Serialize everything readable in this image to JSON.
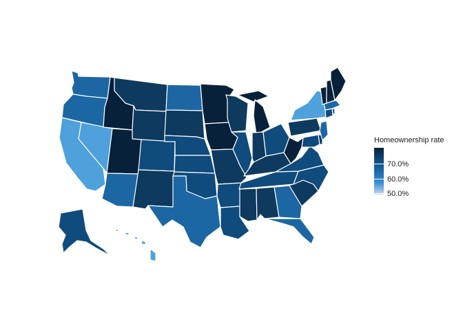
{
  "legend": {
    "title": "Homeownership rate",
    "ticks": [
      {
        "label": "70.0%",
        "value": 70.0
      },
      {
        "label": "60.0%",
        "value": 60.0
      },
      {
        "label": "50.0%",
        "value": 50.0
      }
    ],
    "scale_min": 46.0,
    "scale_max": 75.0
  },
  "colors": {
    "very_high": "#08213a",
    "high": "#0d3a5e",
    "mid_high": "#0f4b7d",
    "mid": "#1c67a3",
    "low": "#3186c6",
    "very_low": "#4ea1db"
  },
  "states": [
    {
      "name": "Washington",
      "level": "mid"
    },
    {
      "name": "Oregon",
      "level": "mid"
    },
    {
      "name": "California",
      "level": "very_low"
    },
    {
      "name": "Nevada",
      "level": "very_low"
    },
    {
      "name": "Idaho",
      "level": "very_high"
    },
    {
      "name": "Montana",
      "level": "high"
    },
    {
      "name": "Wyoming",
      "level": "high"
    },
    {
      "name": "Utah",
      "level": "very_high"
    },
    {
      "name": "Arizona",
      "level": "mid"
    },
    {
      "name": "Colorado",
      "level": "mid_high"
    },
    {
      "name": "New Mexico",
      "level": "high"
    },
    {
      "name": "North Dakota",
      "level": "mid"
    },
    {
      "name": "South Dakota",
      "level": "high"
    },
    {
      "name": "Nebraska",
      "level": "mid_high"
    },
    {
      "name": "Kansas",
      "level": "mid_high"
    },
    {
      "name": "Oklahoma",
      "level": "mid_high"
    },
    {
      "name": "Texas",
      "level": "mid"
    },
    {
      "name": "Minnesota",
      "level": "very_high"
    },
    {
      "name": "Iowa",
      "level": "very_high"
    },
    {
      "name": "Missouri",
      "level": "high"
    },
    {
      "name": "Arkansas",
      "level": "mid_high"
    },
    {
      "name": "Louisiana",
      "level": "mid_high"
    },
    {
      "name": "Wisconsin",
      "level": "high"
    },
    {
      "name": "Illinois",
      "level": "mid_high"
    },
    {
      "name": "Michigan",
      "level": "very_high"
    },
    {
      "name": "Indiana",
      "level": "high"
    },
    {
      "name": "Ohio",
      "level": "mid_high"
    },
    {
      "name": "Kentucky",
      "level": "high"
    },
    {
      "name": "Tennessee",
      "level": "mid_high"
    },
    {
      "name": "Mississippi",
      "level": "high"
    },
    {
      "name": "Alabama",
      "level": "high"
    },
    {
      "name": "Georgia",
      "level": "mid"
    },
    {
      "name": "Florida",
      "level": "mid"
    },
    {
      "name": "South Carolina",
      "level": "high"
    },
    {
      "name": "North Carolina",
      "level": "mid_high"
    },
    {
      "name": "Virginia",
      "level": "mid_high"
    },
    {
      "name": "West Virginia",
      "level": "very_high"
    },
    {
      "name": "Pennsylvania",
      "level": "high"
    },
    {
      "name": "New York",
      "level": "very_low"
    },
    {
      "name": "Maryland",
      "level": "mid_high"
    },
    {
      "name": "Delaware",
      "level": "high"
    },
    {
      "name": "New Jersey",
      "level": "mid"
    },
    {
      "name": "Connecticut",
      "level": "mid_high"
    },
    {
      "name": "Rhode Island",
      "level": "mid"
    },
    {
      "name": "Massachusetts",
      "level": "mid"
    },
    {
      "name": "Vermont",
      "level": "very_high"
    },
    {
      "name": "New Hampshire",
      "level": "very_high"
    },
    {
      "name": "Maine",
      "level": "very_high"
    },
    {
      "name": "Alaska",
      "level": "mid_high"
    },
    {
      "name": "Hawaii",
      "level": "very_low"
    }
  ]
}
